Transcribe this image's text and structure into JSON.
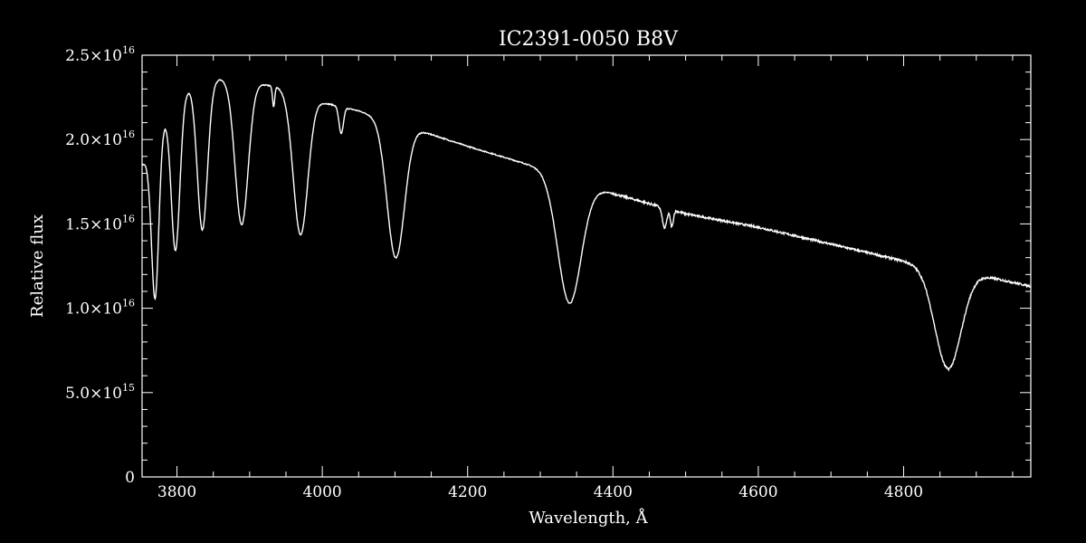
{
  "chart_data": {
    "type": "line",
    "title": "IC2391-0050   B8V",
    "xlabel": "Wavelength, Å",
    "ylabel": "Relative flux",
    "xlim": [
      3752,
      4975
    ],
    "ylim": [
      0,
      2.5e+16
    ],
    "grid": false,
    "colors": {
      "background": "#000000",
      "line": "#ffffff",
      "axes": "#ffffff"
    },
    "x_ticks": [
      3800,
      4000,
      4200,
      4400,
      4600,
      4800
    ],
    "x_tick_labels": [
      "3800",
      "4000",
      "4200",
      "4400",
      "4600",
      "4800"
    ],
    "y_ticks": [
      {
        "value": 0,
        "mantissa": "0",
        "exponent": ""
      },
      {
        "value": 5000000000000000.0,
        "mantissa": "5.0×10",
        "exponent": "15"
      },
      {
        "value": 1e+16,
        "mantissa": "1.0×10",
        "exponent": "16"
      },
      {
        "value": 1.5e+16,
        "mantissa": "1.5×10",
        "exponent": "16"
      },
      {
        "value": 2e+16,
        "mantissa": "2.0×10",
        "exponent": "16"
      },
      {
        "value": 2.5e+16,
        "mantissa": "2.5×10",
        "exponent": "16"
      }
    ],
    "continuum": [
      [
        3752,
        1.85e+16
      ],
      [
        3760,
        1.88e+16
      ],
      [
        3790,
        2.2e+16
      ],
      [
        3820,
        2.32e+16
      ],
      [
        3860,
        2.36e+16
      ],
      [
        3900,
        2.34e+16
      ],
      [
        3940,
        2.31e+16
      ],
      [
        4000,
        2.22e+16
      ],
      [
        4050,
        2.17e+16
      ],
      [
        4150,
        2.03e+16
      ],
      [
        4200,
        1.96e+16
      ],
      [
        4300,
        1.83e+16
      ],
      [
        4340,
        1.75e+16
      ],
      [
        4400,
        1.68e+16
      ],
      [
        4500,
        1.56e+16
      ],
      [
        4600,
        1.48e+16
      ],
      [
        4700,
        1.38e+16
      ],
      [
        4800,
        1.28e+16
      ],
      [
        4862,
        1.22e+16
      ],
      [
        4900,
        1.2e+16
      ],
      [
        4975,
        1.13e+16
      ]
    ],
    "absorption_lines": [
      {
        "center": 3770,
        "depth": 9300000000000000.0,
        "width": 5
      },
      {
        "center": 3798,
        "depth": 8900000000000000.0,
        "width": 6
      },
      {
        "center": 3835,
        "depth": 8700000000000000.0,
        "width": 7
      },
      {
        "center": 3889,
        "depth": 8500000000000000.0,
        "width": 9
      },
      {
        "center": 3933,
        "depth": 1200000000000000.0,
        "width": 1.5
      },
      {
        "center": 3970,
        "depth": 8300000000000000.0,
        "width": 10
      },
      {
        "center": 4026,
        "depth": 1600000000000000.0,
        "width": 3
      },
      {
        "center": 4101,
        "depth": 8000000000000000.0,
        "width": 12
      },
      {
        "center": 4340,
        "depth": 7200000000000000.0,
        "width": 16
      },
      {
        "center": 4471,
        "depth": 1200000000000000.0,
        "width": 3
      },
      {
        "center": 4481,
        "depth": 1000000000000000.0,
        "width": 2
      },
      {
        "center": 4861,
        "depth": 5800000000000000.0,
        "width": 18
      }
    ]
  }
}
